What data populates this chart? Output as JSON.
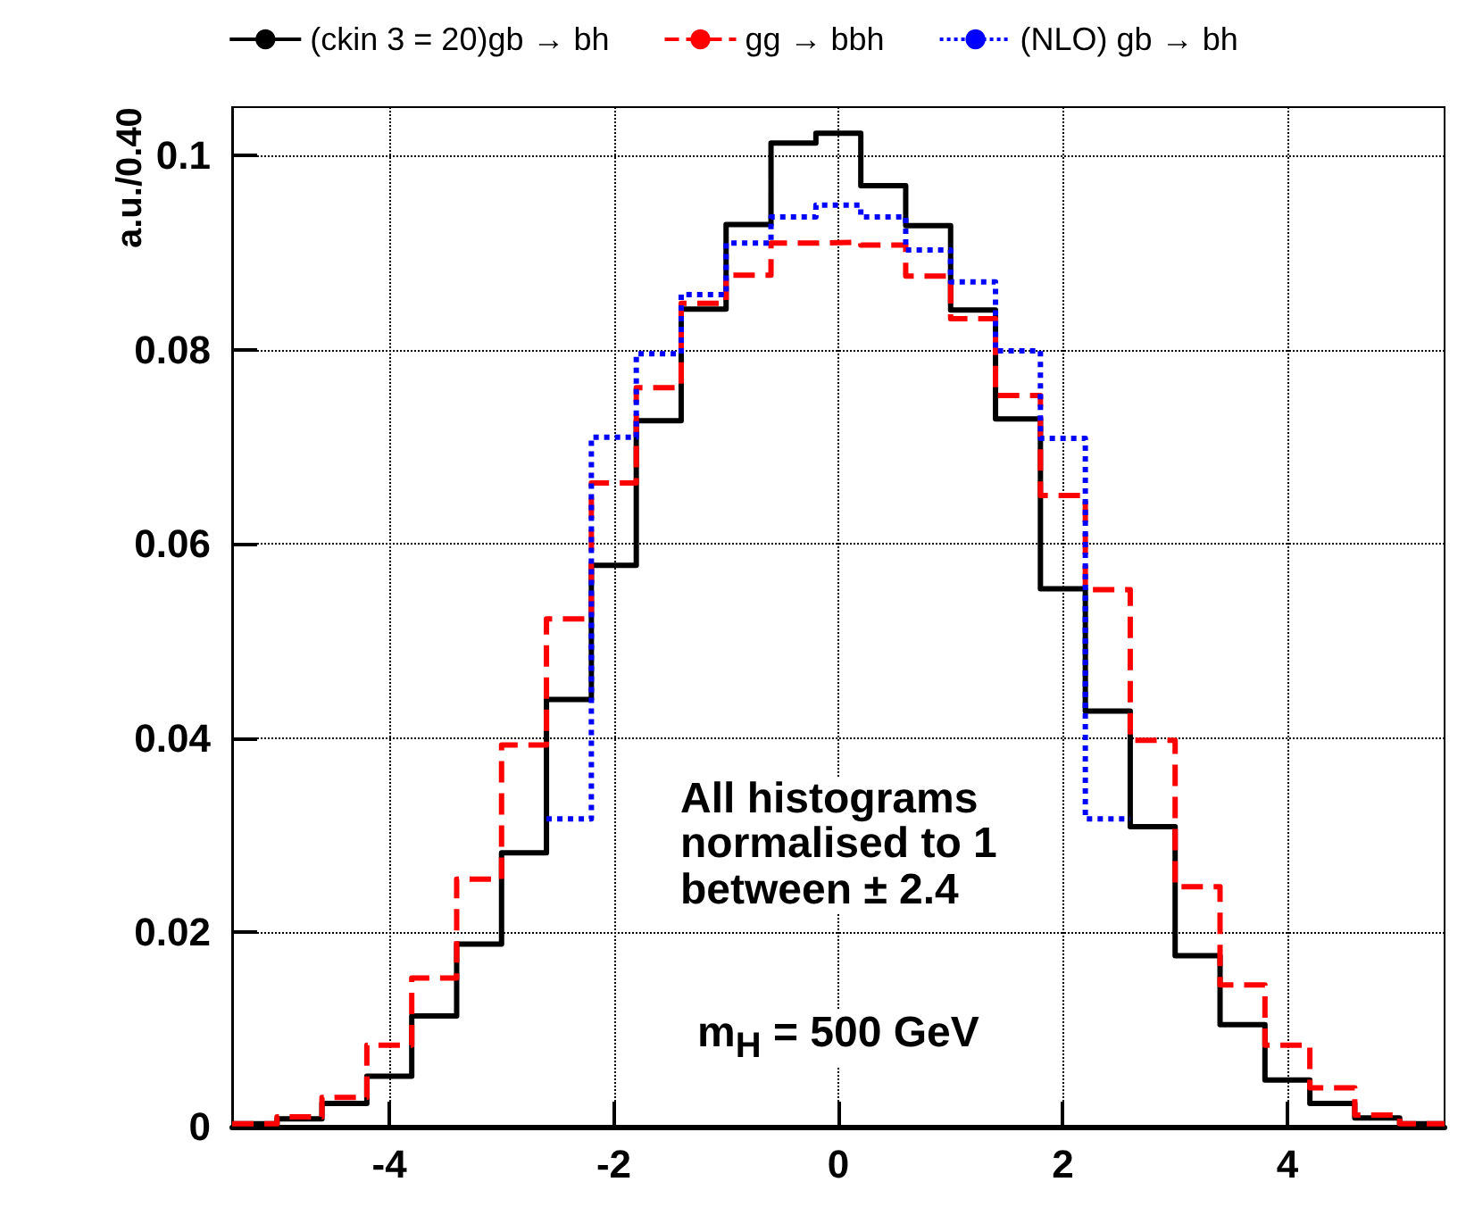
{
  "chart_data": {
    "type": "histogram",
    "ylabel": "a.u./0.40",
    "bins": [
      -5.4,
      -5.0,
      -4.6,
      -4.2,
      -3.8,
      -3.4,
      -3.0,
      -2.6,
      -2.2,
      -1.8,
      -1.4,
      -1.0,
      -0.6,
      -0.2,
      0.2,
      0.6,
      1.0,
      1.4,
      1.8,
      2.2,
      2.6,
      3.0,
      3.4,
      3.8,
      4.2,
      4.6,
      5.0,
      5.4
    ],
    "series": [
      {
        "name": "(ckin 3 = 20)gb → bh",
        "color": "#000000",
        "line_style": "solid",
        "values": [
          0.0003,
          0.0008,
          0.0024,
          0.0052,
          0.0114,
          0.0188,
          0.0282,
          0.044,
          0.0578,
          0.0727,
          0.0842,
          0.0929,
          0.1013,
          0.1023,
          0.0969,
          0.0928,
          0.0841,
          0.0729,
          0.0554,
          0.0428,
          0.0309,
          0.0176,
          0.0105,
          0.0048,
          0.0024,
          0.0009,
          0.0003
        ]
      },
      {
        "name": "gg → bbh",
        "color": "#ff0000",
        "line_style": "dashed",
        "values": [
          0.0003,
          0.001,
          0.003,
          0.0084,
          0.0153,
          0.0255,
          0.0393,
          0.0523,
          0.0663,
          0.0761,
          0.0848,
          0.0877,
          0.091,
          0.0911,
          0.0908,
          0.0876,
          0.0832,
          0.0753,
          0.065,
          0.0553,
          0.0398,
          0.0247,
          0.0146,
          0.0084,
          0.004,
          0.0012,
          0.0003
        ]
      },
      {
        "name": "(NLO) gb → bh",
        "color": "#0000ff",
        "line_style": "dotted",
        "bins": [
          -2.6,
          -2.2,
          -1.8,
          -1.4,
          -1.0,
          -0.6,
          -0.2,
          0.2,
          0.6,
          1.0,
          1.4,
          1.8,
          2.2,
          2.6
        ],
        "values": [
          0.0317,
          0.071,
          0.0796,
          0.0857,
          0.091,
          0.0937,
          0.0949,
          0.0937,
          0.0903,
          0.087,
          0.0799,
          0.0709,
          0.0317
        ]
      }
    ],
    "xlim": [
      -5.4,
      5.4
    ],
    "xticks": [
      -4,
      -2,
      0,
      2,
      4
    ],
    "ylim": [
      0,
      0.105
    ],
    "yticks": [
      0,
      0.02,
      0.04,
      0.06,
      0.08,
      0.1
    ],
    "grid": true,
    "legend": "top",
    "annotations": [
      "All histograms\nnormalised to 1\nbetween ± 2.4",
      "m$_{H}$ = 500 GeV"
    ]
  }
}
